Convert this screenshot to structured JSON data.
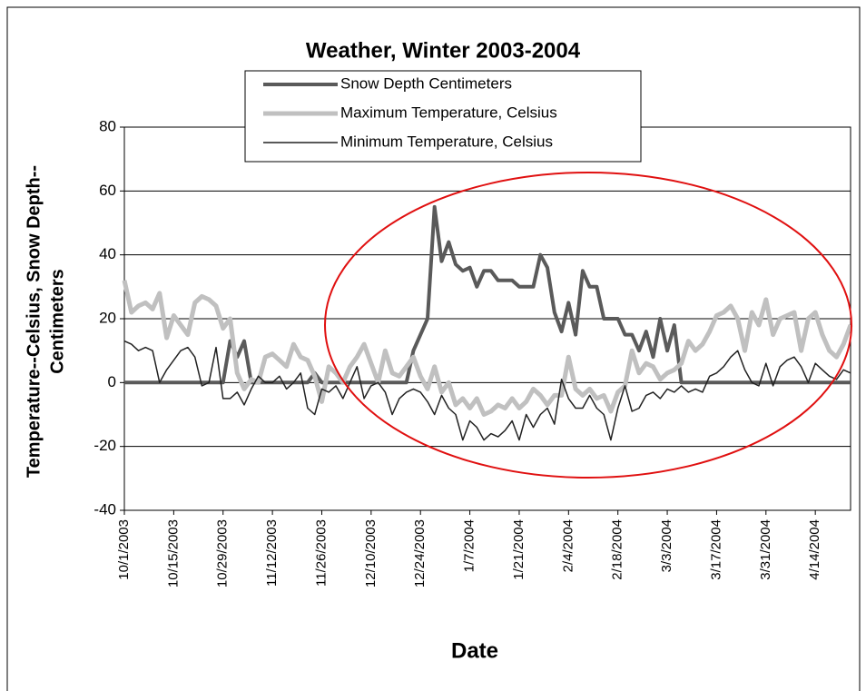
{
  "chart_data": {
    "type": "line",
    "title": "Weather, Winter 2003-2004",
    "x_label": "Date",
    "y_label": [
      "Temperature--Celsius, Snow Depth--",
      "Centimeters"
    ],
    "categories": [
      "10/1/2003",
      null,
      null,
      null,
      null,
      null,
      null,
      "10/15/2003",
      null,
      null,
      null,
      null,
      null,
      null,
      "10/29/2003",
      null,
      null,
      null,
      null,
      null,
      null,
      "11/12/2003",
      null,
      null,
      null,
      null,
      null,
      null,
      "11/26/2003",
      null,
      null,
      null,
      null,
      null,
      null,
      "12/10/2003",
      null,
      null,
      null,
      null,
      null,
      null,
      "12/24/2003",
      null,
      null,
      null,
      null,
      null,
      null,
      "1/7/2004",
      null,
      null,
      null,
      null,
      null,
      null,
      "1/21/2004",
      null,
      null,
      null,
      null,
      null,
      null,
      "2/4/2004",
      null,
      null,
      null,
      null,
      null,
      null,
      "2/18/2004",
      null,
      null,
      null,
      null,
      null,
      null,
      "3/3/2004",
      null,
      null,
      null,
      null,
      null,
      null,
      "3/17/2004",
      null,
      null,
      null,
      null,
      null,
      null,
      "3/31/2004",
      null,
      null,
      null,
      null,
      null,
      null,
      "4/14/2004",
      null,
      null,
      null,
      null,
      null
    ],
    "series": [
      {
        "name": "Snow  Depth Centimeters",
        "color": "#5a5a5a",
        "width": 4,
        "values": [
          0,
          0,
          0,
          0,
          0,
          0,
          0,
          0,
          0,
          0,
          0,
          0,
          0,
          0,
          0,
          13,
          8,
          13,
          0,
          0,
          0,
          0,
          0,
          0,
          0,
          0,
          0,
          3,
          0,
          0,
          0,
          0,
          0,
          0,
          0,
          0,
          0,
          0,
          0,
          0,
          0,
          10,
          15,
          20,
          55,
          38,
          44,
          37,
          35,
          36,
          30,
          35,
          35,
          32,
          32,
          32,
          30,
          30,
          30,
          40,
          36,
          22,
          16,
          25,
          15,
          35,
          30,
          30,
          20,
          20,
          20,
          15,
          15,
          10,
          16,
          8,
          20,
          10,
          18,
          0,
          0,
          0,
          0,
          0,
          0,
          0,
          0,
          0,
          0,
          0,
          0,
          0,
          0,
          0,
          0,
          0,
          0,
          0,
          0,
          0,
          0,
          0,
          0,
          0
        ]
      },
      {
        "name": "Maximum Temperature, Celsius",
        "color": "#c0c0c0",
        "width": 5,
        "values": [
          32,
          22,
          24,
          25,
          23,
          28,
          14,
          21,
          18,
          15,
          25,
          27,
          26,
          24,
          17,
          20,
          3,
          -2,
          1,
          0,
          8,
          9,
          7,
          5,
          12,
          8,
          7,
          2,
          -6,
          5,
          3,
          0,
          5,
          8,
          12,
          6,
          0,
          10,
          3,
          2,
          5,
          8,
          2,
          -2,
          5,
          -3,
          0,
          -7,
          -5,
          -8,
          -5,
          -10,
          -9,
          -7,
          -8,
          -5,
          -8,
          -6,
          -2,
          -4,
          -7,
          -4,
          -4,
          8,
          -2,
          -4,
          -2,
          -5,
          -4,
          -9,
          -3,
          -1,
          10,
          3,
          6,
          5,
          1,
          3,
          4,
          6,
          13,
          10,
          12,
          16,
          21,
          22,
          24,
          20,
          10,
          22,
          18,
          26,
          15,
          20,
          21,
          22,
          10,
          20,
          22,
          15,
          10,
          8,
          12,
          18
        ]
      },
      {
        "name": "Minimum Temperature, Celsius",
        "color": "#222222",
        "width": 1.5,
        "values": [
          13,
          12,
          10,
          11,
          10,
          0,
          4,
          7,
          10,
          11,
          8,
          -1,
          0,
          11,
          -5,
          -5,
          -3,
          -7,
          -2,
          2,
          0,
          0,
          2,
          -2,
          0,
          3,
          -8,
          -10,
          -2,
          -3,
          -1,
          -5,
          0,
          5,
          -5,
          -1,
          0,
          -3,
          -10,
          -5,
          -3,
          -2,
          -3,
          -6,
          -10,
          -4,
          -8,
          -10,
          -18,
          -12,
          -14,
          -18,
          -16,
          -17,
          -15,
          -12,
          -18,
          -10,
          -14,
          -10,
          -8,
          -13,
          1,
          -5,
          -8,
          -8,
          -4,
          -8,
          -10,
          -18,
          -8,
          -1,
          -9,
          -8,
          -4,
          -3,
          -5,
          -2,
          -3,
          -1,
          -3,
          -2,
          -3,
          2,
          3,
          5,
          8,
          10,
          4,
          0,
          -1,
          6,
          -1,
          5,
          7,
          8,
          5,
          0,
          6,
          4,
          2,
          1,
          4,
          3
        ]
      }
    ],
    "ylim": [
      -40,
      80
    ],
    "yticks": [
      -40,
      -20,
      0,
      20,
      40,
      60,
      80
    ],
    "grid": true
  }
}
